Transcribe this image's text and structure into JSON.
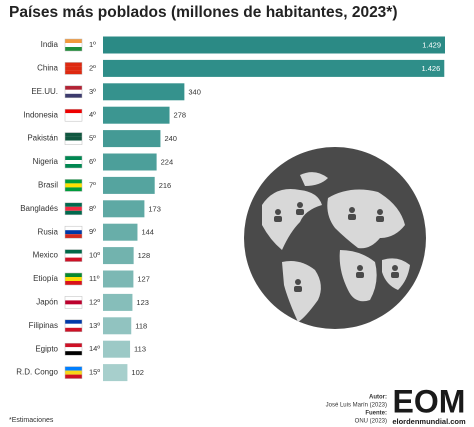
{
  "chart_data": {
    "type": "bar",
    "orientation": "horizontal",
    "title": "Países más poblados (millones de habitantes, 2023*)",
    "categories": [
      "India",
      "China",
      "EE.UU.",
      "Indonesia",
      "Pakistán",
      "Nigeria",
      "Brasil",
      "Bangladés",
      "Rusia",
      "Mexico",
      "Etiopía",
      "Japón",
      "Filipinas",
      "Egipto",
      "R.D. Congo"
    ],
    "ranks": [
      "1º",
      "2º",
      "3º",
      "4º",
      "5º",
      "6º",
      "7º",
      "8º",
      "9º",
      "10º",
      "11º",
      "12º",
      "13º",
      "14º",
      "15º"
    ],
    "values": [
      1429,
      1426,
      340,
      278,
      240,
      224,
      216,
      173,
      144,
      128,
      127,
      123,
      118,
      113,
      102
    ],
    "value_labels": [
      "1.429",
      "1.426",
      "340",
      "278",
      "240",
      "224",
      "216",
      "173",
      "144",
      "128",
      "127",
      "123",
      "118",
      "113",
      "102"
    ],
    "colors": [
      "#2b8a85",
      "#2f8e89",
      "#35928d",
      "#3c9691",
      "#449a95",
      "#4c9f9a",
      "#55a49f",
      "#5ea9a4",
      "#68aea9",
      "#72b3ae",
      "#7cb8b4",
      "#86beba",
      "#91c3c0",
      "#9cc9c6",
      "#a7cfcc"
    ],
    "footnote": "*Estimaciones"
  },
  "credits": {
    "author_label": "Autor:",
    "author": "José Luis Marín (2023)",
    "source_label": "Fuente:",
    "source": "ONU (2023)"
  },
  "logo": {
    "mark": "EOM",
    "site": "elordenmundial.com"
  }
}
